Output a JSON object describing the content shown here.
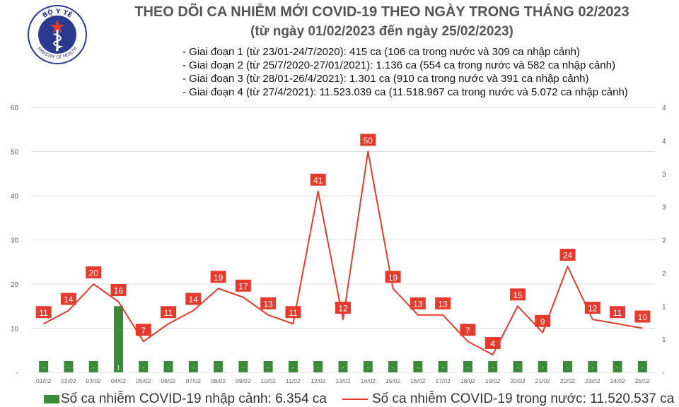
{
  "logo": {
    "top_text": "BỘ Y TẾ",
    "bottom_text": "MINISTRY OF HEALTH"
  },
  "title": "THEO DÕI CA NHIỄM MỚI COVID-19 THEO NGÀY TRONG THÁNG 02/2023",
  "subtitle": "(từ ngày 01/02/2023 đến ngày 25/02/2023)",
  "notes": [
    "- Giai đoạn 1 (từ 23/01-24/7/2020): 415 ca (106 ca trong nước và 309 ca nhập cảnh)",
    "- Giai đoạn 2 (từ 25/7/2020-27/01/2021): 1.136 ca (554 ca trong nước và 582 ca nhập cảnh)",
    "- Giai đoạn 3 (từ 28/01-26/4/2021): 1.301 ca (910 ca trong nước và 391 ca nhập cảnh)",
    "- Giai đoạn 4 (từ 27/4/2021): 11.523.039 ca (11.518.967 ca trong nước và 5.072 ca nhập cảnh)"
  ],
  "legend": {
    "bar": "Số ca nhiễm COVID-19 nhập cảnh: 6.354 ca",
    "line": "Số ca nhiễm COVID-19 trong nước: 11.520.537 ca"
  },
  "colors": {
    "bar": "#3a8a3a",
    "line": "#e53a2e",
    "label_bg": "#e53a2e",
    "grid": "#dddddd",
    "axis_text": "#666666"
  },
  "chart_data": {
    "type": "bar+line",
    "categories": [
      "01/02",
      "02/02",
      "03/02",
      "04/02",
      "05/02",
      "06/02",
      "07/02",
      "08/02",
      "09/02",
      "10/02",
      "11/02",
      "12/02",
      "13/02",
      "14/02",
      "15/02",
      "16/02",
      "17/02",
      "18/02",
      "19/02",
      "20/02",
      "21/02",
      "22/02",
      "23/02",
      "24/02",
      "25/02"
    ],
    "series": [
      {
        "name": "Số ca nhiễm COVID-19 nhập cảnh: 6.354 ca",
        "type": "bar",
        "axis": "left",
        "values": [
          0,
          0,
          0,
          1,
          0,
          0,
          0,
          0,
          0,
          0,
          0,
          0,
          0,
          0,
          0,
          0,
          0,
          0,
          0,
          0,
          0,
          0,
          0,
          0,
          0
        ],
        "labels": [
          "-",
          "-",
          "-",
          "1",
          "-",
          "-",
          "-",
          "-",
          "-",
          "-",
          "-",
          "-",
          "-",
          "-",
          "-",
          "-",
          "-",
          "-",
          "-",
          "-",
          "-",
          "-",
          "-",
          "-",
          "-"
        ]
      },
      {
        "name": "Số ca nhiễm COVID-19 trong nước: 11.520.537 ca",
        "type": "line",
        "axis": "left",
        "values": [
          11,
          14,
          20,
          16,
          7,
          11,
          14,
          19,
          17,
          13,
          11,
          41,
          12,
          50,
          19,
          13,
          13,
          7,
          4,
          15,
          9,
          24,
          12,
          11,
          10
        ]
      }
    ],
    "y_left": {
      "min": 0,
      "max": 60,
      "ticks": [
        0,
        10,
        20,
        30,
        40,
        50,
        60
      ],
      "tick_labels": [
        "-",
        "10",
        "20",
        "30",
        "40",
        "50",
        "60"
      ]
    },
    "y_right": {
      "tick_labels": [
        "-",
        "1",
        "1",
        "2",
        "2",
        "3",
        "3",
        "4",
        "4"
      ]
    },
    "grid": "horizontal",
    "legend_position": "bottom"
  }
}
